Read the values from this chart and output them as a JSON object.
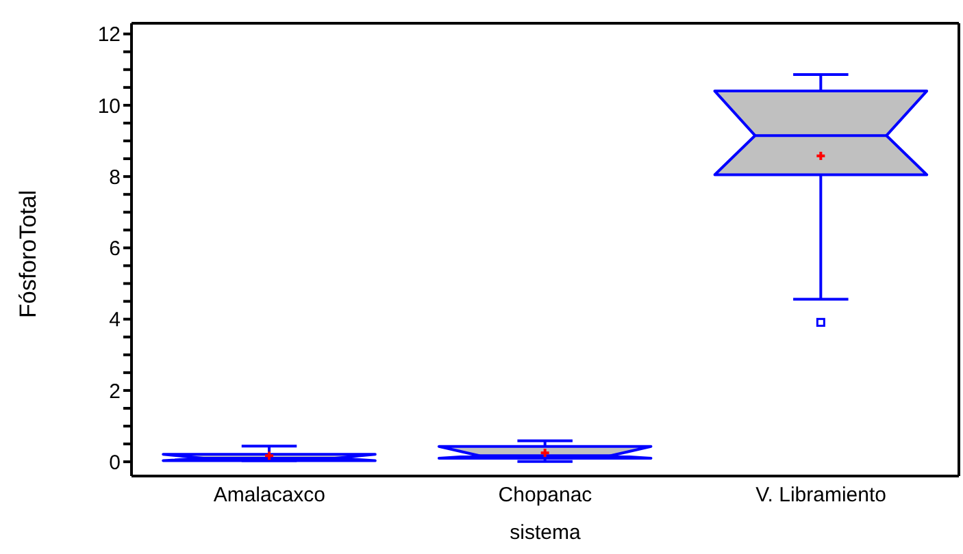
{
  "chart_data": {
    "type": "box",
    "xlabel": "sistema",
    "ylabel": "FósforoTotal",
    "categories": [
      "Amalacaxco",
      "Chopanac",
      "V. Libramiento"
    ],
    "boxes": [
      {
        "low": 0.03,
        "q1": 0.03,
        "median": 0.1,
        "q3": 0.21,
        "high": 0.44,
        "mean": 0.17
      },
      {
        "low": 0.01,
        "q1": 0.1,
        "median": 0.17,
        "q3": 0.43,
        "high": 0.59,
        "mean": 0.25
      },
      {
        "low": 4.56,
        "q1": 8.05,
        "median": 9.15,
        "q3": 10.4,
        "high": 10.86,
        "mean": 8.58,
        "outliers": [
          3.91
        ]
      }
    ],
    "color": "#0000ff",
    "ylim": [
      -0.4,
      12.3
    ],
    "yticks": [
      0,
      {
        "value": 0.5,
        "label": null
      },
      {
        "value": 1,
        "label": null
      },
      {
        "value": 1.5,
        "label": null
      },
      2,
      {
        "value": 2.5,
        "label": null
      },
      {
        "value": 3,
        "label": null
      },
      {
        "value": 3.5,
        "label": null
      },
      4,
      {
        "value": 4.5,
        "label": null
      },
      {
        "value": 5,
        "label": null
      },
      {
        "value": 5.5,
        "label": null
      },
      6,
      {
        "value": 6.5,
        "label": null
      },
      {
        "value": 7,
        "label": null
      },
      {
        "value": 7.5,
        "label": null
      },
      8,
      {
        "value": 8.5,
        "label": null
      },
      {
        "value": 9,
        "label": null
      },
      {
        "value": 9.5,
        "label": null
      },
      10,
      {
        "value": 10.5,
        "label": null
      },
      {
        "value": 11,
        "label": null
      },
      {
        "value": 11.5,
        "label": null
      },
      12
    ],
    "grid": false,
    "legend": false
  }
}
